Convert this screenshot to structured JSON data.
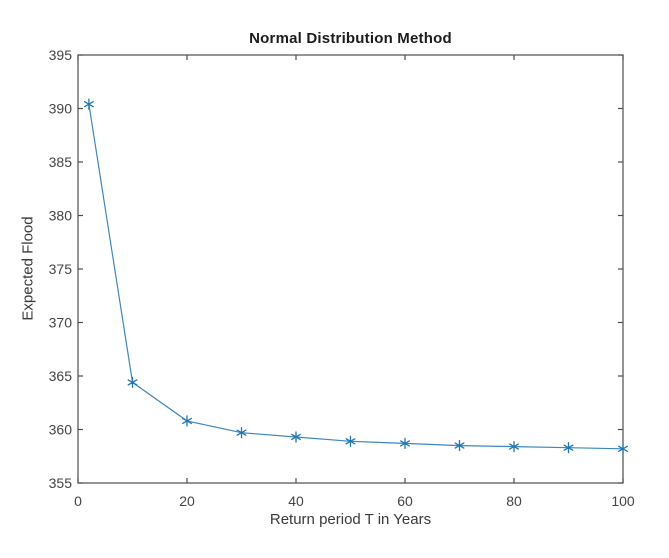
{
  "chart_data": {
    "type": "line",
    "title": "Normal Distribution Method",
    "xlabel": "Return period T in Years",
    "ylabel": "Expected Flood",
    "x": [
      2,
      10,
      20,
      30,
      40,
      50,
      60,
      70,
      80,
      90,
      100
    ],
    "y": [
      390.4,
      364.4,
      360.8,
      359.7,
      359.3,
      358.9,
      358.7,
      358.5,
      358.4,
      358.3,
      358.2
    ],
    "xlim": [
      0,
      100
    ],
    "ylim": [
      355,
      395
    ],
    "xticks": [
      0,
      20,
      40,
      60,
      80,
      100
    ],
    "yticks": [
      355,
      360,
      365,
      370,
      375,
      380,
      385,
      390,
      395
    ],
    "grid": false,
    "legend": "none",
    "box": true,
    "marker": "asterisk",
    "line_color": "#3d87bf",
    "marker_color": "#1f78b5",
    "axis_color": "#4d4d4d",
    "tick_label_color": "#444444",
    "title_color": "#1c1c1c",
    "background": "#ffffff"
  }
}
